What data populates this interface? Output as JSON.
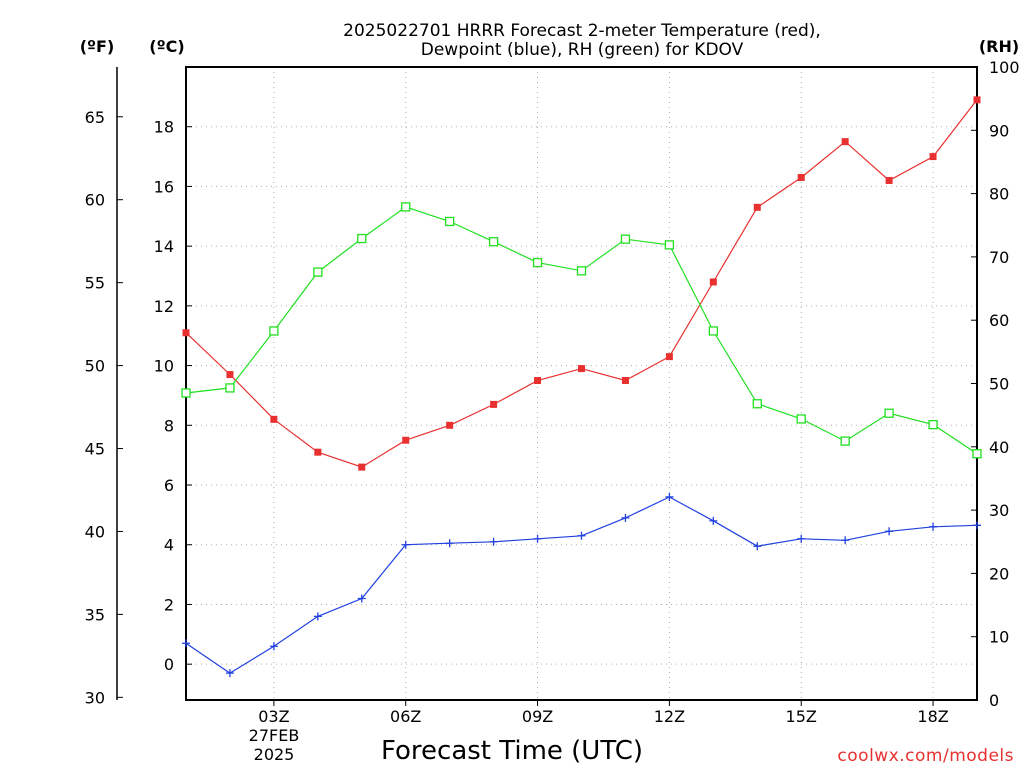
{
  "chart_data": {
    "type": "line",
    "title_lines": [
      "2025022701 HRRR Forecast 2-meter Temperature (red),",
      "Dewpoint (blue), RH (green) for KDOV"
    ],
    "xlabel": "Forecast Time (UTC)",
    "credit": "coolwx.com/models",
    "units": {
      "fahrenheit": "(ºF)",
      "celsius": "(ºC)",
      "rh": "(RH)"
    },
    "x_hours": [
      1,
      2,
      3,
      4,
      5,
      6,
      7,
      8,
      9,
      10,
      11,
      12,
      13,
      14,
      15,
      16,
      17,
      18,
      19
    ],
    "xlim": [
      1,
      19
    ],
    "x_ticks": [
      {
        "hour": 3,
        "label": "03Z"
      },
      {
        "hour": 6,
        "label": "06Z"
      },
      {
        "hour": 9,
        "label": "09Z"
      },
      {
        "hour": 12,
        "label": "12Z"
      },
      {
        "hour": 15,
        "label": "15Z"
      },
      {
        "hour": 18,
        "label": "18Z"
      }
    ],
    "date_label_lines": [
      "27FEB",
      "2025"
    ],
    "ylim_celsius": [
      -1.2,
      20.0
    ],
    "celsius_ticks": [
      "0",
      "2",
      "4",
      "6",
      "8",
      "10",
      "12",
      "14",
      "16",
      "18"
    ],
    "fahrenheit_ticks": [
      "30",
      "35",
      "40",
      "45",
      "50",
      "55",
      "60",
      "65"
    ],
    "ylim_rh": [
      0,
      100
    ],
    "rh_ticks": [
      "0",
      "10",
      "20",
      "30",
      "40",
      "50",
      "60",
      "70",
      "80",
      "90",
      "100"
    ],
    "series": [
      {
        "name": "Temperature",
        "axis": "celsius",
        "color": "#e83030",
        "marker": "filled-square",
        "values": [
          11.1,
          9.7,
          8.2,
          7.1,
          6.6,
          7.5,
          8.0,
          8.7,
          9.5,
          9.9,
          9.5,
          10.3,
          12.8,
          15.3,
          16.3,
          17.5,
          16.2,
          17.0,
          18.9
        ]
      },
      {
        "name": "Dewpoint",
        "axis": "celsius",
        "color": "#2040e0",
        "marker": "plus",
        "values": [
          0.7,
          -0.3,
          0.6,
          1.6,
          2.2,
          4.0,
          4.05,
          4.1,
          4.2,
          4.3,
          4.9,
          5.6,
          4.8,
          3.95,
          4.2,
          4.15,
          4.45,
          4.6,
          4.65
        ]
      },
      {
        "name": "RH",
        "axis": "rh",
        "color": "#20e020",
        "marker": "open-square",
        "values": [
          48.5,
          49.3,
          58.3,
          67.6,
          72.9,
          77.9,
          75.6,
          72.4,
          69.1,
          67.8,
          72.8,
          71.9,
          58.3,
          46.8,
          44.4,
          40.9,
          45.3,
          43.5,
          38.9
        ]
      }
    ],
    "grid": true
  }
}
